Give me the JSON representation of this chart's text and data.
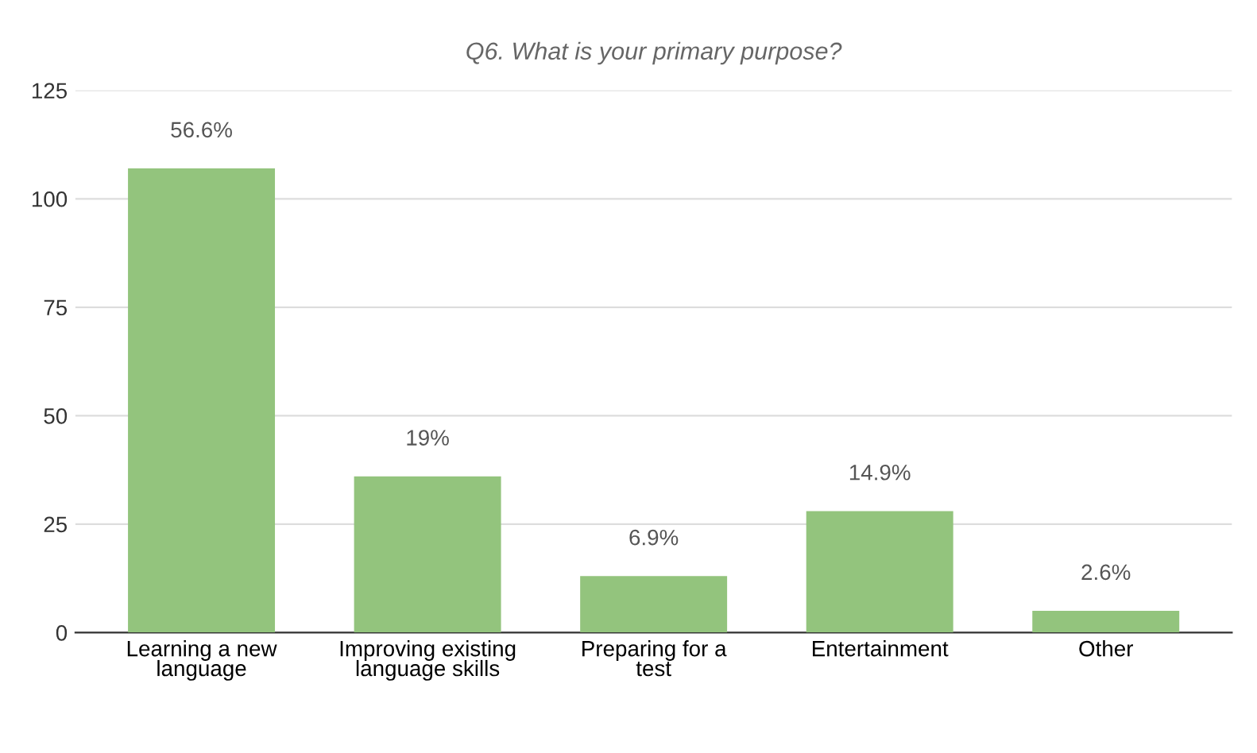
{
  "chart_data": {
    "type": "bar",
    "title": "Q6. What is your primary purpose?",
    "categories": [
      "Learning a new language",
      "Improving existing language skills",
      "Preparing for a test",
      "Entertainment",
      "Other"
    ],
    "values": [
      107,
      36,
      13,
      28,
      5
    ],
    "annotations": [
      {
        "text": "56.6%",
        "x": "Learning a new language",
        "y": 107
      },
      {
        "text": "19%",
        "x": "Improving existing language skills",
        "y": 36
      },
      {
        "text": "6.9%",
        "x": "Preparing for a test",
        "y": 13
      },
      {
        "text": "14.9%",
        "x": "Entertainment",
        "y": 28
      },
      {
        "text": "2.6%",
        "x": "Other",
        "y": 5
      }
    ],
    "color": "#93c47d",
    "ylim": [
      0,
      125
    ],
    "yticks": [
      0,
      25,
      50,
      75,
      100,
      125
    ],
    "grid": "y"
  }
}
